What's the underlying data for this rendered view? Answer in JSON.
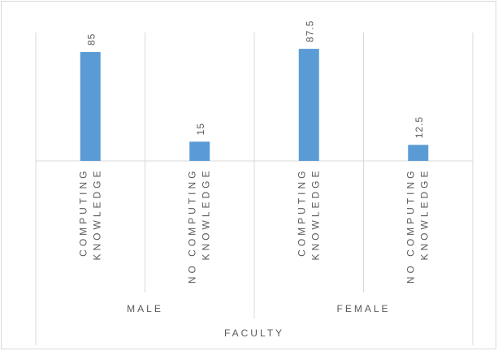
{
  "chart_data": {
    "type": "bar",
    "color": "#5b9bd5",
    "x_label": "FACULTY",
    "groups": [
      {
        "name": "MALE",
        "categories": [
          "COMPUTING KNOWLEDGE",
          "NO COMPUTING KNOWLEDGE"
        ],
        "values": [
          85,
          15
        ]
      },
      {
        "name": "FEMALE",
        "categories": [
          "COMPUTING KNOWLEDGE",
          "NO COMPUTING KNOWLEDGE"
        ],
        "values": [
          87.5,
          12.5
        ]
      }
    ]
  }
}
